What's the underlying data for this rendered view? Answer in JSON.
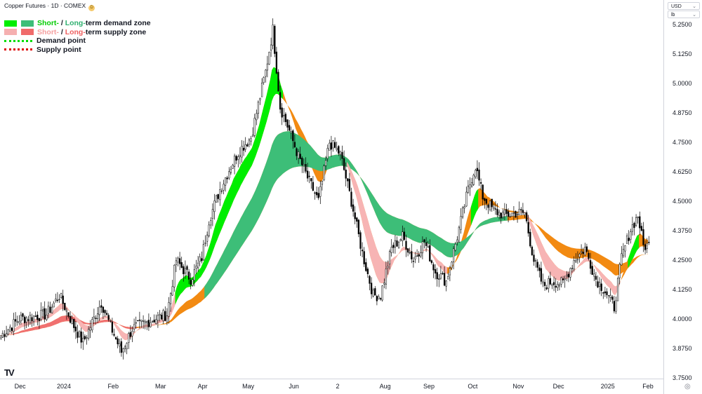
{
  "header": {
    "title": "Copper Futures · 1D · COMEX",
    "badge": "D"
  },
  "unit_selector": {
    "currency": "USD",
    "unit": "lb"
  },
  "legend": {
    "rows": [
      {
        "short": "Short-",
        "sep": " / ",
        "long": "Long-",
        "rest": "term demand zone",
        "short_color": "#00ee00",
        "long_color": "#3dbe78"
      },
      {
        "short": "Short-",
        "sep": " / ",
        "long": "Long-",
        "rest": "term supply zone",
        "short_color": "#f5b0b0",
        "long_color": "#f06b6b"
      },
      {
        "label": "Demand point",
        "color": "#00dd00"
      },
      {
        "label": "Supply point",
        "color": "#dd0000"
      }
    ]
  },
  "icons": {
    "logo": "tradingview-logo-icon",
    "settings": "settings-icon"
  },
  "colors": {
    "up_candle": "#ffffff",
    "candle_outline": "#000000",
    "down_candle": "#000000",
    "demand_short": "#00ee00",
    "demand_long": "#3dbe78",
    "supply_short": "#f7b4b4",
    "supply_long": "#f07070",
    "orange": "#f28a12",
    "grid": "none",
    "axis_text": "#131722"
  },
  "chart_data": {
    "type": "candlestick",
    "title": "Copper Futures · 1D · COMEX",
    "grid": false,
    "ylim": [
      3.75,
      5.35
    ],
    "y_ticks": [
      "3.7500",
      "3.8750",
      "4.0000",
      "4.1250",
      "4.2500",
      "4.3750",
      "4.5000",
      "4.6250",
      "4.7500",
      "4.8750",
      "5.0000",
      "5.1250",
      "5.2500"
    ],
    "x_ticks": [
      "Dec",
      "2024",
      "Feb",
      "Mar",
      "Apr",
      "May",
      "Jun",
      "2",
      "Aug",
      "Sep",
      "Oct",
      "Nov",
      "Dec",
      "2025",
      "Feb"
    ],
    "x_tick_index": [
      11,
      35,
      62,
      88,
      111,
      136,
      161,
      185,
      211,
      235,
      259,
      284,
      306,
      333,
      355
    ],
    "close_anchors": [
      [
        0,
        3.93
      ],
      [
        10,
        4.0
      ],
      [
        25,
        4.02
      ],
      [
        32,
        4.1
      ],
      [
        40,
        3.97
      ],
      [
        45,
        3.9
      ],
      [
        55,
        4.07
      ],
      [
        60,
        3.97
      ],
      [
        66,
        3.86
      ],
      [
        72,
        3.96
      ],
      [
        84,
        4.0
      ],
      [
        91,
        4.02
      ],
      [
        96,
        4.25
      ],
      [
        104,
        4.17
      ],
      [
        110,
        4.26
      ],
      [
        114,
        4.42
      ],
      [
        120,
        4.55
      ],
      [
        126,
        4.65
      ],
      [
        131,
        4.72
      ],
      [
        137,
        4.77
      ],
      [
        145,
        5.05
      ],
      [
        149,
        5.23
      ],
      [
        153,
        4.9
      ],
      [
        157,
        4.82
      ],
      [
        163,
        4.69
      ],
      [
        168,
        4.6
      ],
      [
        174,
        4.5
      ],
      [
        180,
        4.75
      ],
      [
        186,
        4.7
      ],
      [
        192,
        4.5
      ],
      [
        198,
        4.28
      ],
      [
        204,
        4.1
      ],
      [
        208,
        4.1
      ],
      [
        214,
        4.3
      ],
      [
        220,
        4.35
      ],
      [
        226,
        4.25
      ],
      [
        232,
        4.33
      ],
      [
        238,
        4.2
      ],
      [
        244,
        4.16
      ],
      [
        250,
        4.35
      ],
      [
        256,
        4.55
      ],
      [
        260,
        4.65
      ],
      [
        264,
        4.52
      ],
      [
        270,
        4.46
      ],
      [
        276,
        4.44
      ],
      [
        282,
        4.45
      ],
      [
        287,
        4.45
      ],
      [
        292,
        4.25
      ],
      [
        297,
        4.14
      ],
      [
        302,
        4.16
      ],
      [
        308,
        4.15
      ],
      [
        314,
        4.25
      ],
      [
        320,
        4.3
      ],
      [
        326,
        4.17
      ],
      [
        331,
        4.12
      ],
      [
        336,
        4.05
      ],
      [
        340,
        4.26
      ],
      [
        345,
        4.38
      ],
      [
        349,
        4.44
      ],
      [
        352,
        4.31
      ]
    ],
    "demand_zone_short": [
      {
        "from": 96,
        "to": 155
      },
      {
        "from": 258,
        "to": 262
      },
      {
        "from": 344,
        "to": 350
      }
    ],
    "demand_zone_long": [
      {
        "from": 112,
        "to": 278
      }
    ],
    "supply_zone_short": [
      {
        "from": 0,
        "to": 96
      },
      {
        "from": 190,
        "to": 245
      },
      {
        "from": 285,
        "to": 340
      }
    ],
    "supply_zone_long": [
      {
        "from": 0,
        "to": 75
      }
    ]
  }
}
